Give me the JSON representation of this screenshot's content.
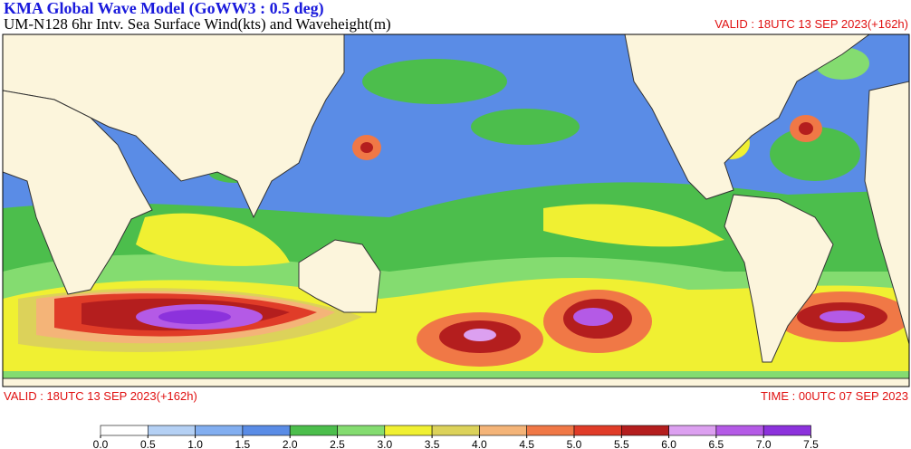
{
  "header": {
    "title": "KMA  Global Wave Model (GoWW3 : 0.5 deg)",
    "subtitle": "UM-N128  6hr Intv. Sea Surface Wind(kts) and Waveheight(m)",
    "valid_top": "VALID : 18UTC 13 SEP 2023(+162h)"
  },
  "footer": {
    "valid": "VALID : 18UTC 13 SEP 2023(+162h)",
    "time": "TIME : 00UTC 07 SEP 2023"
  },
  "legend": {
    "ticks": [
      {
        "value": 0,
        "label": "0.0"
      },
      0.5,
      {
        "value": 1,
        "label": "1.0"
      },
      1.5,
      {
        "value": 2,
        "label": "2.0"
      },
      2.5,
      {
        "value": 3,
        "label": "3.0"
      },
      3.5,
      {
        "value": 4,
        "label": "4.0"
      },
      4.5,
      {
        "value": 5,
        "label": "5.0"
      },
      5.5,
      {
        "value": 6,
        "label": "6.0"
      },
      6.5,
      {
        "value": 7,
        "label": "7.0"
      },
      7.5
    ],
    "colors": [
      "#ffffff",
      "#b4d0f4",
      "#82aef0",
      "#5a8ce6",
      "#4cbe4c",
      "#84dc70",
      "#f0f032",
      "#dcd25a",
      "#f4b478",
      "#f07846",
      "#e03c28",
      "#b41e1e",
      "#dca0f0",
      "#b45ae6",
      "#8c32dc"
    ]
  }
}
